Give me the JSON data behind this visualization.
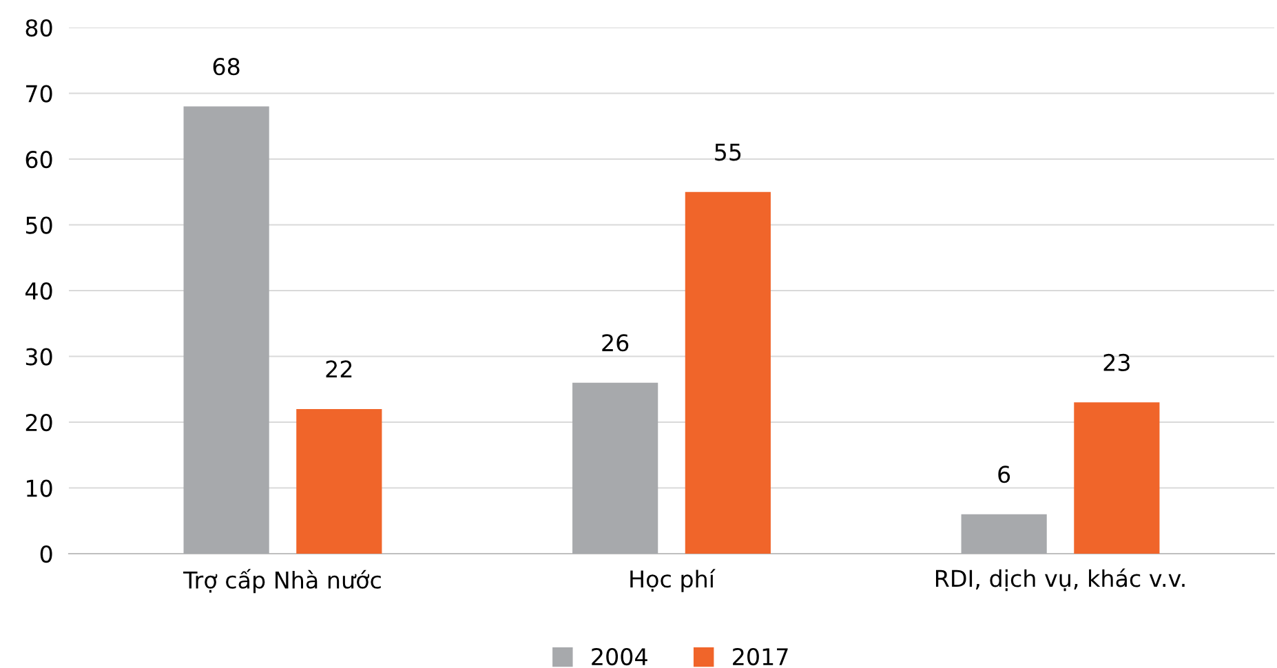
{
  "chart_data": {
    "type": "bar",
    "categories": [
      "Trợ cấp Nhà nước",
      "Học phí",
      "RDI, dịch vụ, khác v.v."
    ],
    "series": [
      {
        "name": "2004",
        "color": "#a7a9ac",
        "values": [
          68,
          26,
          6
        ]
      },
      {
        "name": "2017",
        "color": "#f0652a",
        "values": [
          22,
          55,
          23
        ]
      }
    ],
    "ylim": [
      0,
      80
    ],
    "yticks": [
      0,
      10,
      20,
      30,
      40,
      50,
      60,
      70,
      80
    ],
    "grid": "y",
    "legend": "bottom",
    "data_labels": true
  }
}
